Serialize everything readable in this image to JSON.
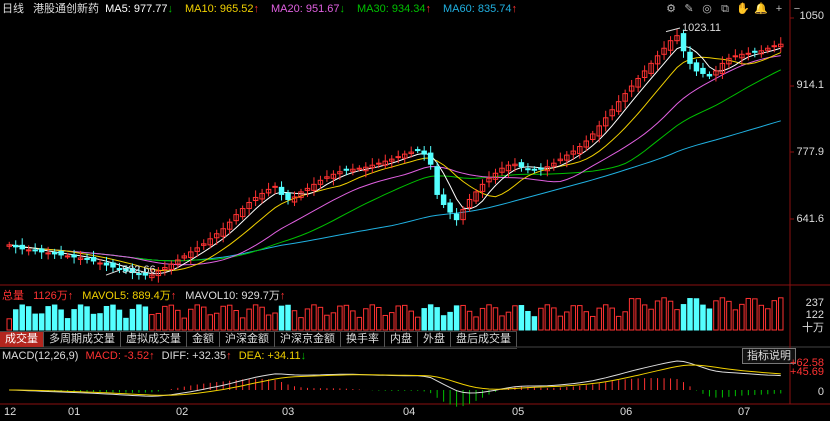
{
  "header": {
    "period": "日线",
    "name": "港股通创新药",
    "ma": [
      {
        "label": "MA5:",
        "value": "977.77",
        "arrow": "↓",
        "color": "#ffffff"
      },
      {
        "label": "MA10:",
        "value": "965.52",
        "arrow": "↑",
        "color": "#f0d000"
      },
      {
        "label": "MA20:",
        "value": "951.67",
        "arrow": "↓",
        "color": "#e060e0"
      },
      {
        "label": "MA30:",
        "value": "934.34",
        "arrow": "↑",
        "color": "#00c000"
      },
      {
        "label": "MA60:",
        "value": "835.74",
        "arrow": "↑",
        "color": "#20b0e0"
      }
    ]
  },
  "toolbar": {
    "icons": [
      "settings-icon",
      "draw-icon",
      "eye-icon",
      "copy-icon",
      "hand-icon",
      "bell-icon",
      "zoom-in-icon",
      "zoom-out-icon"
    ],
    "glyphs": [
      "⚙",
      "✎",
      "◎",
      "⧉",
      "✋",
      "🔔",
      "+",
      "−"
    ]
  },
  "price_axis": {
    "labels": [
      "1050",
      "914.1",
      "777.9",
      "641.6"
    ]
  },
  "annotations": {
    "high": "1023.11",
    "low": "532.66"
  },
  "volume_header": {
    "title": "总量",
    "total": "1126万",
    "total_arrow": "↑",
    "mavol5": "MAVOL5: 889.4万",
    "mavol5_arrow": "↑",
    "mavol10": "MAVOL10: 929.7万",
    "mavol10_arrow": "↑"
  },
  "volume_axis": {
    "labels": [
      "237",
      "122",
      "十万"
    ]
  },
  "tabs": [
    "成交量",
    "多周期成交量",
    "虚拟成交量",
    "金额",
    "沪深金额",
    "沪深京金额",
    "换手率",
    "内盘",
    "外盘",
    "盘后成交量"
  ],
  "indicator_button": "指标说明",
  "macd_header": {
    "title": "MACD(12,26,9)",
    "macd": "MACD: -3.52",
    "macd_arrow": "↑",
    "diff": "DIFF: +32.35",
    "diff_arrow": "↑",
    "dea": "DEA: +34.11",
    "dea_arrow": "↓"
  },
  "macd_axis": {
    "labels": [
      "+62.58",
      "+45.69",
      "0"
    ]
  },
  "months": [
    "12",
    "01",
    "02",
    "03",
    "04",
    "05",
    "06",
    "07"
  ],
  "colors": {
    "up": "#ff3232",
    "down": "#54ffff",
    "ma5": "#ffffff",
    "ma10": "#f0d000",
    "ma20": "#e060e0",
    "ma30": "#00c000",
    "ma60": "#20b0e0"
  },
  "chart_data": {
    "type": "candlestick",
    "price_range": [
      560,
      1050
    ],
    "candles_close": [
      600,
      596,
      592,
      590,
      588,
      586,
      584,
      582,
      580,
      578,
      576,
      574,
      572,
      568,
      564,
      560,
      556,
      552,
      548,
      545,
      542,
      540,
      540,
      548,
      555,
      562,
      570,
      578,
      586,
      594,
      602,
      612,
      622,
      632,
      645,
      660,
      672,
      684,
      694,
      702,
      710,
      716,
      700,
      690,
      695,
      705,
      712,
      720,
      728,
      735,
      740,
      745,
      748,
      750,
      752,
      754,
      758,
      762,
      766,
      770,
      775,
      780,
      784,
      788,
      780,
      760,
      700,
      680,
      665,
      650,
      670,
      690,
      705,
      720,
      732,
      742,
      752,
      758,
      760,
      755,
      750,
      748,
      750,
      755,
      762,
      770,
      778,
      786,
      795,
      806,
      820,
      836,
      852,
      868,
      884,
      900,
      915,
      930,
      945,
      960,
      975,
      990,
      1005,
      1015,
      985,
      960,
      945,
      940,
      935,
      945,
      960,
      970,
      975,
      978,
      980,
      982,
      985,
      990,
      995,
      998
    ]
  }
}
